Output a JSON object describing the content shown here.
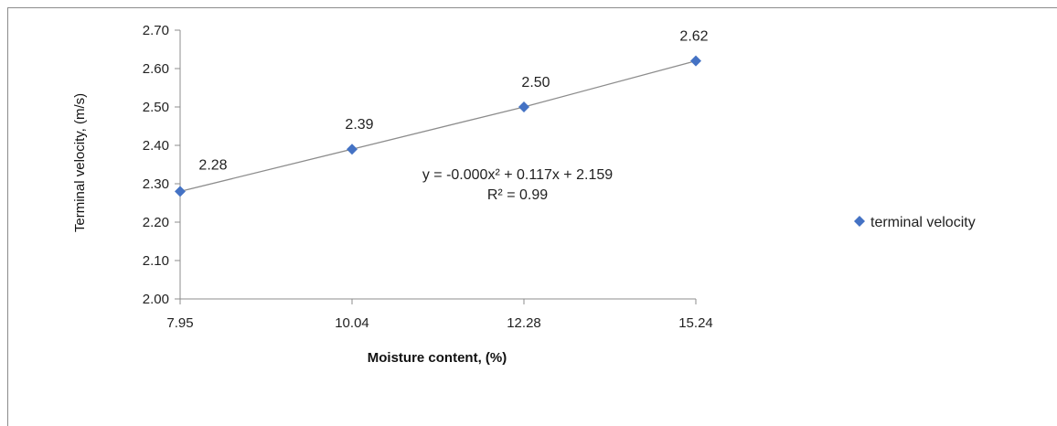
{
  "chart_data": {
    "type": "scatter",
    "categories": [
      "7.95",
      "10.04",
      "12.28",
      "15.24"
    ],
    "series": [
      {
        "name": "terminal velocity",
        "values": [
          2.28,
          2.39,
          2.5,
          2.62
        ],
        "color": "#4472c4"
      }
    ],
    "data_labels": [
      "2.28",
      "2.39",
      "2.50",
      "2.62"
    ],
    "trendline": {
      "type": "polynomial",
      "color": "#8c8c8c",
      "equation": "y = -0.000x² + 0.117x + 2.159",
      "r2": "R² = 0.99"
    },
    "title": "",
    "xlabel": "Moisture content, (%)",
    "ylabel": "Terminal velocity, (m/s)",
    "ylim": [
      2.0,
      2.7
    ],
    "yticks": [
      "2.00",
      "2.10",
      "2.20",
      "2.30",
      "2.40",
      "2.50",
      "2.60",
      "2.70"
    ],
    "grid": false,
    "legend": "right"
  }
}
